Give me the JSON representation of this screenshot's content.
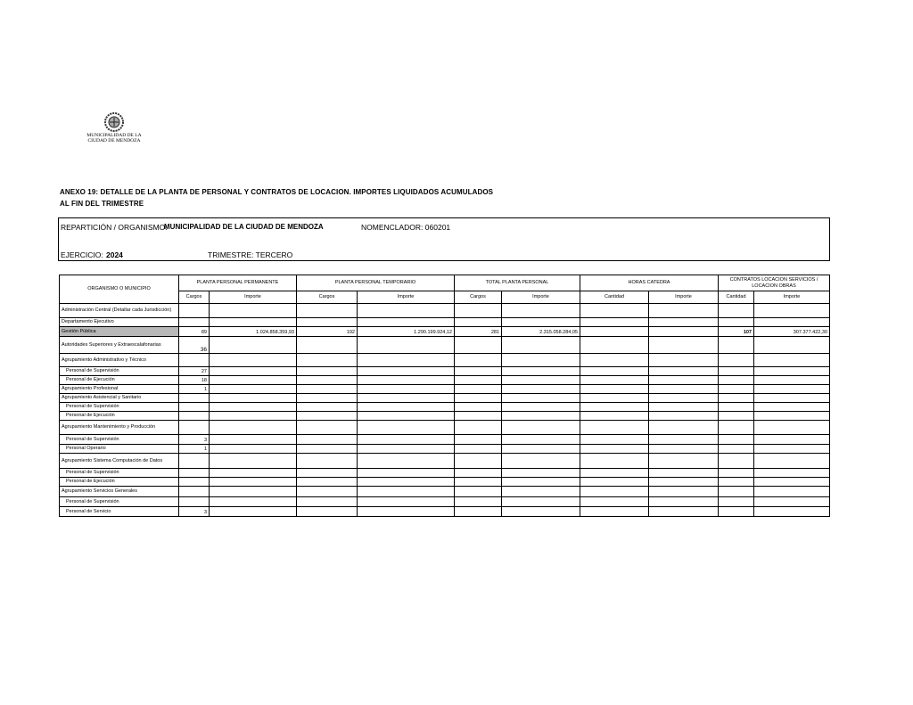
{
  "logo": {
    "line1": "MUNICIPALIDAD DE LA",
    "line2": "CIUDAD DE MENDOZA"
  },
  "title": {
    "line1": "ANEXO 19: DETALLE DE LA PLANTA DE PERSONAL Y CONTRATOS DE LOCACION. IMPORTES LIQUIDADOS ACUMULADOS",
    "line2": "AL FIN DEL TRIMESTRE"
  },
  "info": {
    "reparticion_label": "REPARTICIÓN / ORGANISMO:",
    "reparticion_value": "MUNICIPALIDAD DE LA CIUDAD DE MENDOZA",
    "nomenclador": "NOMENCLADOR: 060201",
    "ejercicio_label": "EJERCICIO:",
    "ejercicio_value": "2024",
    "trimestre": "TRIMESTRE: TERCERO"
  },
  "table": {
    "org_header": "ORGANISMO O MUNICIPIO",
    "groups": [
      "PLANTA PERSONAL PERMANENTE",
      "PLANTA PERSONAL TEMPORARIO",
      "TOTAL PLANTA PERSONAL",
      "HORAS CATEDRA",
      "CONTRATOS LOCACION SERVICIOS / LOCACION OBRAS"
    ],
    "subheaders": [
      "Cargos",
      "Importe",
      "Cargos",
      "Importe",
      "Cargos",
      "Importe",
      "Cantidad",
      "Importe",
      "Cantidad",
      "Importe"
    ],
    "rows": [
      {
        "label": "Administración Central (Detallar cada Jurisdicción)",
        "values": [
          "",
          "",
          "",
          "",
          "",
          "",
          "",
          "",
          "",
          ""
        ]
      },
      {
        "label": "Departamento Ejecutivo",
        "values": [
          "",
          "",
          "",
          "",
          "",
          "",
          "",
          "",
          "",
          ""
        ]
      },
      {
        "label": "Gestión Pública",
        "values": [
          "89",
          "1.024.858.359,93",
          "192",
          "1.290.199.924,12",
          "281",
          "2.315.058.284,05",
          "",
          "",
          "107",
          "307.377.422,30"
        ]
      },
      {
        "label": "Autoridades Superiores y Extraescalafonarias",
        "values": [
          "36",
          "",
          "",
          "",
          "",
          "",
          "",
          "",
          "",
          ""
        ]
      },
      {
        "label": "Agrupamiento Administrativo y Técnico",
        "values": [
          "",
          "",
          "",
          "",
          "",
          "",
          "",
          "",
          "",
          ""
        ]
      },
      {
        "label": "Personal de Supervisión",
        "values": [
          "27",
          "",
          "",
          "",
          "",
          "",
          "",
          "",
          "",
          ""
        ]
      },
      {
        "label": "Personal de Ejecución",
        "values": [
          "18",
          "",
          "",
          "",
          "",
          "",
          "",
          "",
          "",
          ""
        ]
      },
      {
        "label": "Agrupamiento Profesional",
        "values": [
          "1",
          "",
          "",
          "",
          "",
          "",
          "",
          "",
          "",
          ""
        ]
      },
      {
        "label": "Agrupamiento Asistencial y Sanitario",
        "values": [
          "",
          "",
          "",
          "",
          "",
          "",
          "",
          "",
          "",
          ""
        ]
      },
      {
        "label": "Personal de Supervisión",
        "values": [
          "",
          "",
          "",
          "",
          "",
          "",
          "",
          "",
          "",
          ""
        ]
      },
      {
        "label": "Personal de Ejecución",
        "values": [
          "",
          "",
          "",
          "",
          "",
          "",
          "",
          "",
          "",
          ""
        ]
      },
      {
        "label": "Agrupamiento Mantenimiento y Producción",
        "values": [
          "",
          "",
          "",
          "",
          "",
          "",
          "",
          "",
          "",
          ""
        ]
      },
      {
        "label": "Personal de Supervisión",
        "values": [
          "3",
          "",
          "",
          "",
          "",
          "",
          "",
          "",
          "",
          ""
        ]
      },
      {
        "label": "Personal Operario",
        "values": [
          "1",
          "",
          "",
          "",
          "",
          "",
          "",
          "",
          "",
          ""
        ]
      },
      {
        "label": "Agrupamiento Sistema Computación de Datos",
        "values": [
          "",
          "",
          "",
          "",
          "",
          "",
          "",
          "",
          "",
          ""
        ]
      },
      {
        "label": "Personal de Supervisión",
        "values": [
          "",
          "",
          "",
          "",
          "",
          "",
          "",
          "",
          "",
          ""
        ]
      },
      {
        "label": "Personal de Ejecución",
        "values": [
          "",
          "",
          "",
          "",
          "",
          "",
          "",
          "",
          "",
          ""
        ]
      },
      {
        "label": "Agrupamiento Servicios Generales",
        "values": [
          "",
          "",
          "",
          "",
          "",
          "",
          "",
          "",
          "",
          ""
        ]
      },
      {
        "label": "Personal de Supervisión",
        "values": [
          "",
          "",
          "",
          "",
          "",
          "",
          "",
          "",
          "",
          ""
        ]
      },
      {
        "label": "Personal de Servicio",
        "values": [
          "3",
          "",
          "",
          "",
          "",
          "",
          "",
          "",
          "",
          ""
        ]
      }
    ]
  }
}
